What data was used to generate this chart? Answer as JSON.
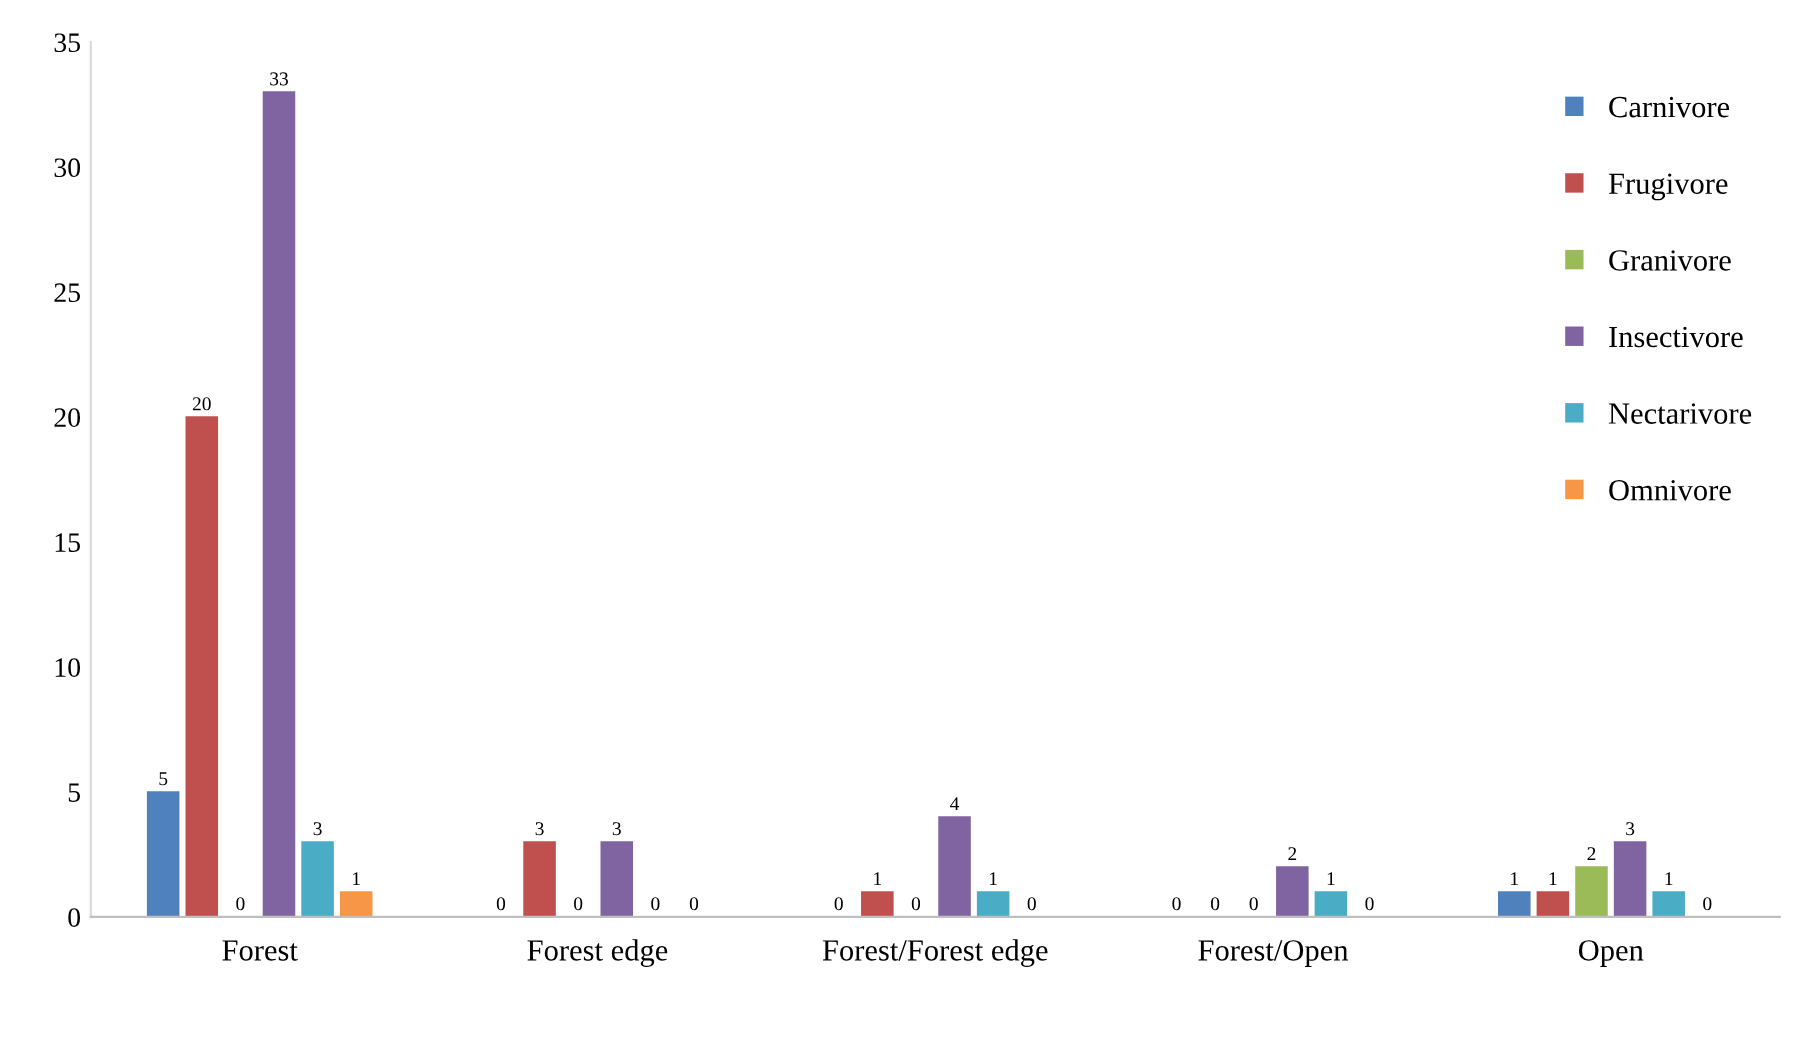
{
  "chart_data": {
    "type": "bar",
    "categories": [
      "Forest",
      "Forest edge",
      "Forest/Forest edge",
      "Forest/Open",
      "Open"
    ],
    "series": [
      {
        "name": "Carnivore",
        "color": "#4f81bd",
        "values": [
          5,
          0,
          0,
          0,
          1
        ]
      },
      {
        "name": "Frugivore",
        "color": "#c0504d",
        "values": [
          20,
          3,
          1,
          0,
          1
        ]
      },
      {
        "name": "Granivore",
        "color": "#9bbb59",
        "values": [
          0,
          0,
          0,
          0,
          2
        ]
      },
      {
        "name": "Insectivore",
        "color": "#8064a2",
        "values": [
          33,
          3,
          4,
          2,
          3
        ]
      },
      {
        "name": "Nectarivore",
        "color": "#4bacc6",
        "values": [
          3,
          0,
          1,
          1,
          1
        ]
      },
      {
        "name": "Omnivore",
        "color": "#f79646",
        "values": [
          1,
          0,
          0,
          0,
          0
        ]
      }
    ],
    "ylim": [
      0,
      35
    ],
    "yticks": [
      0,
      5,
      10,
      15,
      20,
      25,
      30,
      35
    ],
    "data_labels": true,
    "legend": "top right",
    "grid": false
  }
}
